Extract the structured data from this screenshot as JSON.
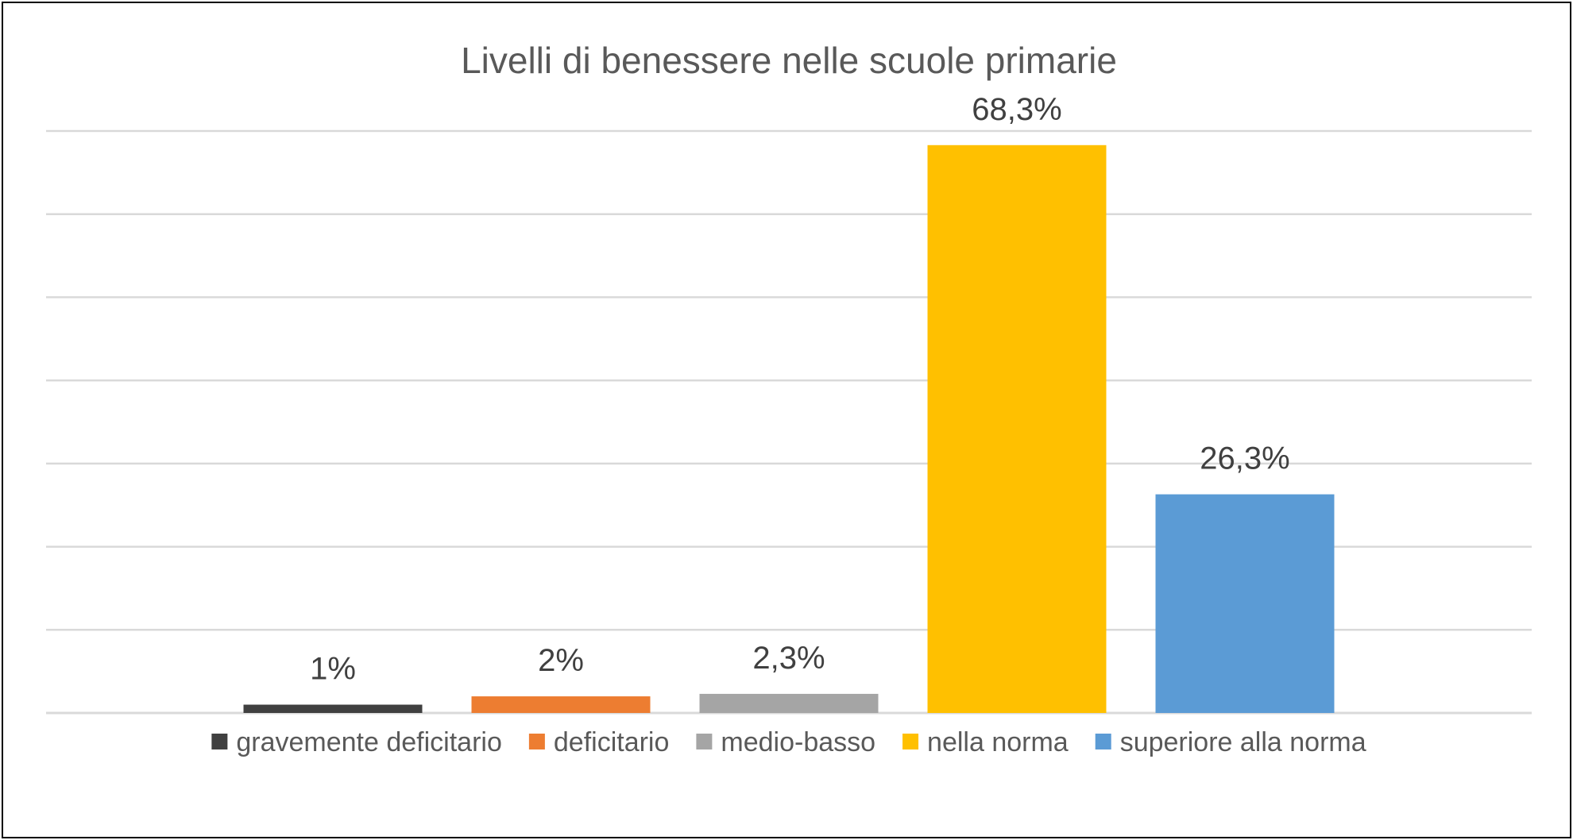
{
  "chart_data": {
    "type": "bar",
    "title": "Livelli di benessere nelle scuole primarie",
    "xlabel": "",
    "ylabel": "",
    "categories": [
      "gravemente deficitario",
      "deficitario",
      "medio-basso",
      "nella norma",
      "superiore alla norma"
    ],
    "values": [
      1,
      2,
      2.3,
      68.3,
      26.3
    ],
    "data_labels": [
      "1%",
      "2%",
      "2,3%",
      "68,3%",
      "26,3%"
    ],
    "colors": [
      "#404040",
      "#ED7D31",
      "#A5A5A5",
      "#FFC000",
      "#5B9BD5"
    ],
    "ylim": [
      0,
      70
    ],
    "y_gridline_step": 10,
    "grid": true,
    "legend_position": "bottom"
  }
}
